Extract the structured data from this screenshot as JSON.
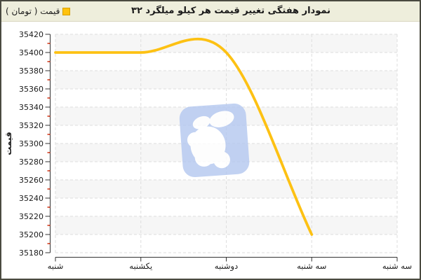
{
  "header": {
    "title": "نمودار هفتگی تغییر قیمت هر کیلو میلگرد ۳۲",
    "legend_label": "قیمت ( تومان )",
    "legend_color": "#FFC20E"
  },
  "chart_data": {
    "type": "line",
    "title": "نمودار هفتگی تغییر قیمت هر کیلو میلگرد ۳۲",
    "ylabel": "قیمت",
    "categories": [
      "شنبه",
      "یکشنبه",
      "دوشنبه",
      "سه شنبه",
      "سه شنبه"
    ],
    "series": [
      {
        "name": "قیمت ( تومان )",
        "color": "#FDC113",
        "values": [
          35400,
          35400,
          35400,
          35200
        ]
      }
    ],
    "ylim": [
      35180,
      35420
    ],
    "ytick_step": 20,
    "yticks": [
      35420,
      35400,
      35380,
      35360,
      35340,
      35320,
      35300,
      35280,
      35260,
      35240,
      35220,
      35200,
      35180
    ],
    "grid": "dashed",
    "gridline_color": "#dedede",
    "interlaced_row_colors": [
      "#f6f6f6",
      "#ffffff"
    ],
    "minor_tick_color": "#cc2200",
    "axis_color": "#333333",
    "smoothing": "spline",
    "legend_position": "top-left",
    "note": "last x category has no data point; line ends at 4th tick"
  },
  "watermark": {
    "name": "site-logo",
    "color": "#b3c7f0"
  }
}
